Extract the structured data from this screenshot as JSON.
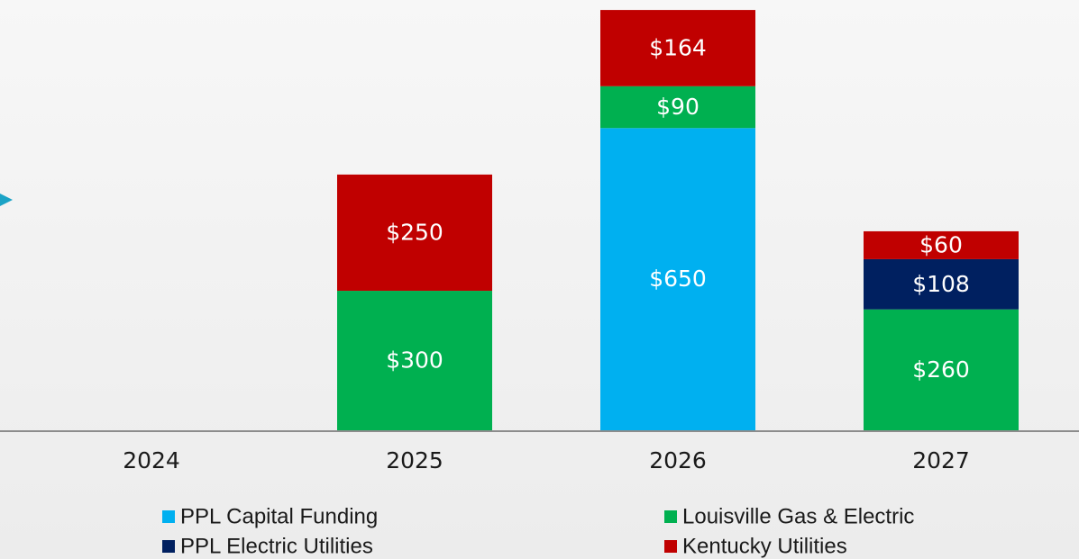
{
  "chart_data": {
    "type": "bar",
    "stacked": true,
    "categories": [
      "2024",
      "2025",
      "2026",
      "2027"
    ],
    "series": [
      {
        "name": "PPL Capital Funding",
        "color": "#00b0f0",
        "values": [
          null,
          null,
          650,
          null
        ],
        "value_labels": [
          null,
          null,
          "$650",
          null
        ]
      },
      {
        "name": "Louisville Gas & Electric",
        "color": "#00b050",
        "values": [
          null,
          300,
          90,
          260
        ],
        "value_labels": [
          null,
          "$300",
          "$90",
          "$260"
        ]
      },
      {
        "name": "PPL Electric Utilities",
        "color": "#002060",
        "values": [
          null,
          null,
          null,
          108
        ],
        "value_labels": [
          null,
          null,
          null,
          "$108"
        ]
      },
      {
        "name": "Kentucky Utilities",
        "color": "#c00000",
        "values": [
          null,
          250,
          164,
          60
        ],
        "value_labels": [
          null,
          "$250",
          "$164",
          "$60"
        ]
      }
    ]
  }
}
